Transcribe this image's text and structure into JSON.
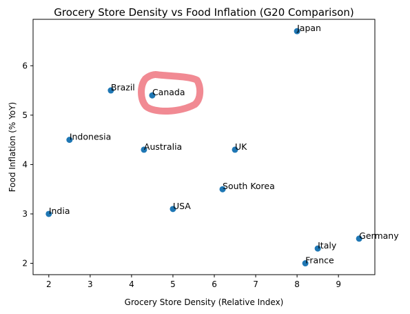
{
  "chart_data": {
    "type": "scatter",
    "title": "Grocery Store Density vs Food Inflation (G20 Comparison)",
    "xlabel": "Grocery Store Density (Relative Index)",
    "ylabel": "Food Inflation (% YoY)",
    "xlim": [
      1.62,
      9.88
    ],
    "ylim": [
      1.77,
      6.94
    ],
    "xticks": [
      2,
      3,
      4,
      5,
      6,
      7,
      8,
      9
    ],
    "yticks": [
      2,
      3,
      4,
      5,
      6
    ],
    "grid": false,
    "marker_color": "#1f77b4",
    "points": [
      {
        "label": "India",
        "x": 2.0,
        "y": 3.0
      },
      {
        "label": "Indonesia",
        "x": 2.5,
        "y": 4.5
      },
      {
        "label": "Brazil",
        "x": 3.5,
        "y": 5.5
      },
      {
        "label": "Australia",
        "x": 4.3,
        "y": 4.3
      },
      {
        "label": "Canada",
        "x": 4.5,
        "y": 5.4
      },
      {
        "label": "USA",
        "x": 5.0,
        "y": 3.1
      },
      {
        "label": "South Korea",
        "x": 6.2,
        "y": 3.5
      },
      {
        "label": "UK",
        "x": 6.5,
        "y": 4.3
      },
      {
        "label": "Japan",
        "x": 8.0,
        "y": 6.7
      },
      {
        "label": "France",
        "x": 8.2,
        "y": 2.0
      },
      {
        "label": "Italy",
        "x": 8.5,
        "y": 2.3
      },
      {
        "label": "Germany",
        "x": 9.5,
        "y": 2.5
      }
    ],
    "annotations": [
      {
        "type": "hand-drawn-circle",
        "target": "Canada",
        "color": "#f0808a"
      }
    ]
  }
}
